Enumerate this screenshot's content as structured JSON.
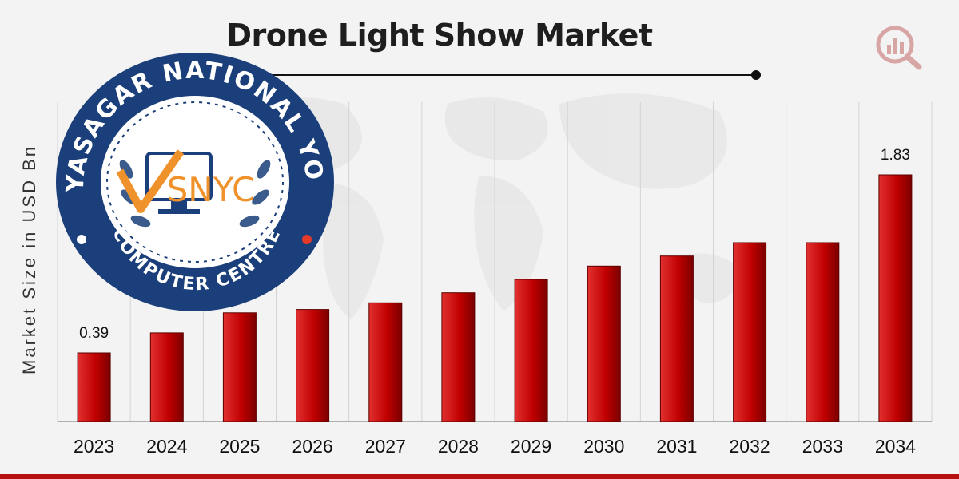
{
  "colors": {
    "bar": "#c00000",
    "bar_dark": "#6e0000",
    "bar_light": "#e02424",
    "grid": "#d3d3d3",
    "axis": "#999999",
    "text": "#111111",
    "bottom_band": "#b50f0f",
    "seal_navy": "#1b3f7a",
    "seal_orange": "#f0922c",
    "seal_red": "#e53a27"
  },
  "icons": {
    "brand": "magnifier-bar-chart-icon",
    "seal": "laurel-wreath-seal"
  },
  "chart_data": {
    "type": "bar",
    "title": "Drone Light Show Market",
    "xlabel": "",
    "ylabel": "Market Size in USD Bn",
    "categories": [
      "2023",
      "2024",
      "2025",
      "2026",
      "2027",
      "2028",
      "2029",
      "2030",
      "2031",
      "2032",
      "2033",
      "2034"
    ],
    "values": [
      0.39,
      0.45,
      0.51,
      0.52,
      0.54,
      0.57,
      0.61,
      0.65,
      0.68,
      0.72,
      0.72,
      1.83
    ],
    "data_labels": [
      "0.39",
      "",
      "0.51",
      "",
      "",
      "",
      "",
      "",
      "",
      "",
      "",
      "1.83"
    ],
    "grid": true,
    "legend": "none"
  },
  "watermark": {
    "top_text": "VIDYASAGAR NATIONAL YOUTH",
    "bottom_text": "COMPUTER CENTRE",
    "logo_text": "SNYC"
  }
}
